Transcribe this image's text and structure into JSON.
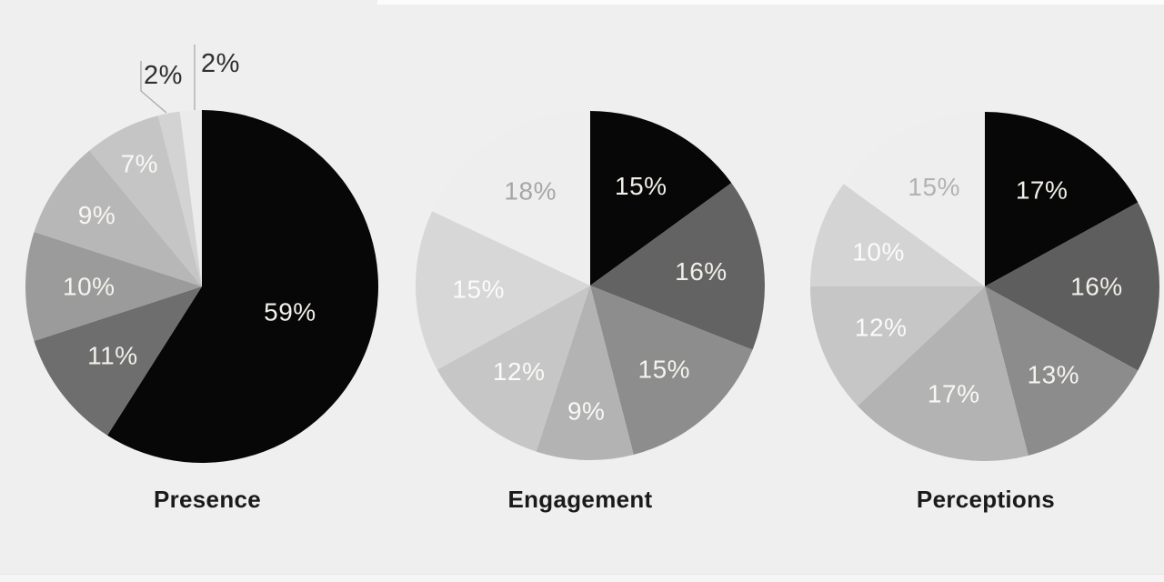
{
  "page": {
    "background_color": "#f0efef",
    "top_strip_color": "#fcfcfc",
    "bottom_strip_color": "#f5f5f5",
    "bottom_strip_border_color": "#e8e8e8"
  },
  "chart_data": [
    {
      "type": "pie",
      "title": "Presence",
      "start_angle_deg": 0,
      "direction": "clockwise",
      "labels_position": "inside",
      "leader_line_color": "#a9a9a9",
      "slices": [
        {
          "label": "59%",
          "value": 59,
          "color": "#070707",
          "label_color": "#f2efe9"
        },
        {
          "label": "11%",
          "value": 11,
          "color": "#6e6e6e",
          "label_color": "#f2efe9"
        },
        {
          "label": "10%",
          "value": 10,
          "color": "#9b9b9b",
          "label_color": "#f5f3ee"
        },
        {
          "label": "9%",
          "value": 9,
          "color": "#b7b7b7",
          "label_color": "#f8f6f2"
        },
        {
          "label": "7%",
          "value": 7,
          "color": "#c5c5c5",
          "label_color": "#f9f8f5"
        },
        {
          "label": "2%",
          "value": 2,
          "color": "#d3d3d3",
          "label_color": "#2f2f2f",
          "callout": true
        },
        {
          "label": "2%",
          "value": 2,
          "color": "#ebebeb",
          "label_color": "#2f2f2f",
          "callout": true
        }
      ]
    },
    {
      "type": "pie",
      "title": "Engagement",
      "start_angle_deg": 0,
      "direction": "clockwise",
      "labels_position": "inside",
      "slices": [
        {
          "label": "15%",
          "value": 15,
          "color": "#070707",
          "label_color": "#f2efe9"
        },
        {
          "label": "16%",
          "value": 16,
          "color": "#636363",
          "label_color": "#f2efe9"
        },
        {
          "label": "15%",
          "value": 15,
          "color": "#8d8d8d",
          "label_color": "#f5f3ee"
        },
        {
          "label": "9%",
          "value": 9,
          "color": "#b3b3b3",
          "label_color": "#f9f8f5"
        },
        {
          "label": "12%",
          "value": 12,
          "color": "#c6c6c6",
          "label_color": "#fafaf8"
        },
        {
          "label": "15%",
          "value": 15,
          "color": "#d7d7d7",
          "label_color": "#fbfbfa"
        },
        {
          "label": "18%",
          "value": 18,
          "color": "#eeeeee",
          "label_color": "#a7a7a7"
        }
      ]
    },
    {
      "type": "pie",
      "title": "Perceptions",
      "start_angle_deg": 0,
      "direction": "clockwise",
      "labels_position": "inside",
      "slices": [
        {
          "label": "17%",
          "value": 17,
          "color": "#070707",
          "label_color": "#f2efe9"
        },
        {
          "label": "16%",
          "value": 16,
          "color": "#5e5e5e",
          "label_color": "#f2efe9"
        },
        {
          "label": "13%",
          "value": 13,
          "color": "#8c8c8c",
          "label_color": "#f5f3ee"
        },
        {
          "label": "17%",
          "value": 17,
          "color": "#b3b3b3",
          "label_color": "#f9f8f5"
        },
        {
          "label": "12%",
          "value": 12,
          "color": "#c6c6c6",
          "label_color": "#fafaf8"
        },
        {
          "label": "10%",
          "value": 10,
          "color": "#d4d4d4",
          "label_color": "#fbfbfa"
        },
        {
          "label": "15%",
          "value": 15,
          "color": "#eeeeee",
          "label_color": "#b2b2b2"
        }
      ]
    }
  ]
}
